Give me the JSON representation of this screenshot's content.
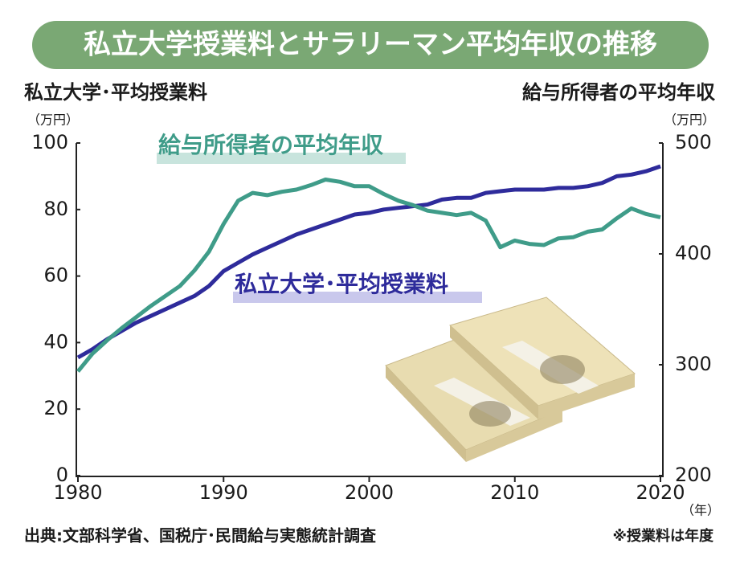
{
  "chart_data": {
    "type": "line",
    "title": "私立大学授業料とサラリーマン平均年収の推移",
    "y_label": "私立大学･平均授業料",
    "y_unit": "（万円）",
    "y2_label": "給与所得者の平均年収",
    "y2_unit": "（万円）",
    "x_unit": "（年）",
    "source": "出典:文部科学省、国税庁･民間給与実態統計調査",
    "note": "※授業料は年度",
    "x": [
      1980,
      1981,
      1982,
      1983,
      1984,
      1985,
      1986,
      1987,
      1988,
      1989,
      1990,
      1991,
      1992,
      1993,
      1994,
      1995,
      1996,
      1997,
      1998,
      1999,
      2000,
      2001,
      2002,
      2003,
      2004,
      2005,
      2006,
      2007,
      2008,
      2009,
      2010,
      2011,
      2012,
      2013,
      2014,
      2015,
      2016,
      2017,
      2018,
      2019,
      2020
    ],
    "xlim": [
      1980,
      2020
    ],
    "xticks": [
      1980,
      1990,
      2000,
      2010,
      2020
    ],
    "ylim": [
      0,
      100
    ],
    "yticks": [
      0,
      20,
      40,
      60,
      80,
      100
    ],
    "y2lim": [
      200,
      500
    ],
    "y2ticks": [
      200,
      300,
      400,
      500
    ],
    "series": [
      {
        "name": "私立大学･平均授業料",
        "color": "#2e2b9b",
        "values": [
          35.5,
          38,
          41,
          43.5,
          46,
          48,
          50,
          52,
          54,
          57,
          61.5,
          64,
          66.5,
          68.5,
          70.5,
          72.5,
          74,
          75.5,
          77,
          78.5,
          79,
          80,
          80.5,
          81,
          81.5,
          83,
          83.5,
          83.5,
          85,
          85.5,
          86,
          86,
          86,
          86.5,
          86.5,
          87,
          88,
          90,
          90.5,
          91.5,
          93
        ]
      },
      {
        "name": "給与所得者の平均年収",
        "color": "#3f9c89",
        "axis": "y2",
        "values": [
          294,
          310,
          322,
          333,
          343,
          353,
          362,
          371,
          385,
          402,
          427,
          448,
          455,
          453,
          456,
          458,
          462,
          467,
          465,
          461,
          461,
          454,
          448,
          444,
          439,
          437,
          435,
          437,
          430,
          406,
          412,
          409,
          408,
          414,
          415,
          420,
          422,
          432,
          441,
          436,
          433
        ]
      }
    ]
  }
}
